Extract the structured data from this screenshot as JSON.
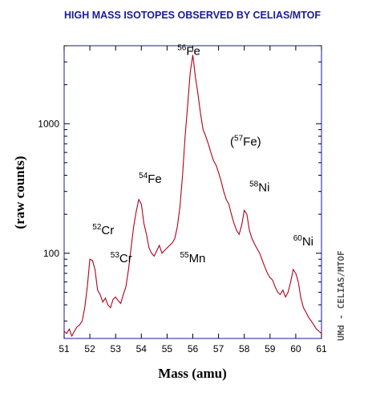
{
  "chart_data": {
    "type": "line",
    "title": "HIGH MASS ISOTOPES OBSERVED BY CELIAS/MTOF",
    "xlabel": "Mass (amu)",
    "ylabel": "(raw counts)",
    "xlim": [
      51,
      61
    ],
    "ylim": [
      22,
      4000
    ],
    "yscale": "log",
    "x_ticks": [
      51,
      52,
      53,
      54,
      55,
      56,
      57,
      58,
      59,
      60,
      61
    ],
    "y_ticks": [
      100,
      1000
    ],
    "line_color": "#b3001b",
    "credit": "UMd - CELIAS/MTOF",
    "annotations": [
      {
        "mass": "52",
        "element": "Cr",
        "x": 52.1,
        "y": 140
      },
      {
        "mass": "53",
        "element": "Cr",
        "x": 52.8,
        "y": 85
      },
      {
        "mass": "54",
        "element": "Fe",
        "x": 53.9,
        "y": 350
      },
      {
        "mass": "55",
        "element": "Mn",
        "x": 55.5,
        "y": 85
      },
      {
        "mass": "56",
        "element": "Fe",
        "x": 55.4,
        "y": 3400
      },
      {
        "mass": "57",
        "element": "Fe",
        "x": 57.45,
        "y": 680,
        "parenthesized": true
      },
      {
        "mass": "58",
        "element": "Ni",
        "x": 58.2,
        "y": 300
      },
      {
        "mass": "60",
        "element": "Ni",
        "x": 59.9,
        "y": 115
      }
    ],
    "series": [
      {
        "x": [
          51.0,
          51.1,
          51.2,
          51.3,
          51.4,
          51.5,
          51.6,
          51.7,
          51.8,
          51.9,
          52.0,
          52.1,
          52.2,
          52.3,
          52.4,
          52.5,
          52.6,
          52.7,
          52.8,
          52.9,
          53.0,
          53.1,
          53.2,
          53.3,
          53.4,
          53.5,
          53.6,
          53.7,
          53.8,
          53.9,
          54.0,
          54.1,
          54.2,
          54.3,
          54.4,
          54.5,
          54.6,
          54.7,
          54.8,
          54.9,
          55.0,
          55.1,
          55.2,
          55.3,
          55.4,
          55.5,
          55.6,
          55.7,
          55.8,
          55.9,
          56.0,
          56.1,
          56.2,
          56.3,
          56.4,
          56.5,
          56.6,
          56.7,
          56.8,
          56.9,
          57.0,
          57.1,
          57.2,
          57.3,
          57.4,
          57.5,
          57.6,
          57.7,
          57.8,
          57.9,
          58.0,
          58.1,
          58.2,
          58.3,
          58.4,
          58.5,
          58.6,
          58.7,
          58.8,
          58.9,
          59.0,
          59.1,
          59.2,
          59.3,
          59.4,
          59.5,
          59.6,
          59.7,
          59.8,
          59.9,
          60.0,
          60.1,
          60.2,
          60.3,
          60.4,
          60.5,
          60.6,
          60.7,
          60.8,
          60.9,
          61.0
        ],
        "y": [
          25,
          24,
          26,
          23,
          25,
          27,
          28,
          30,
          38,
          55,
          90,
          88,
          75,
          52,
          48,
          42,
          45,
          40,
          38,
          44,
          46,
          43,
          41,
          48,
          55,
          75,
          110,
          160,
          210,
          260,
          240,
          170,
          140,
          110,
          100,
          95,
          105,
          115,
          100,
          105,
          110,
          115,
          120,
          130,
          160,
          230,
          400,
          800,
          1400,
          2500,
          3400,
          2300,
          1700,
          1200,
          900,
          800,
          700,
          600,
          520,
          480,
          420,
          360,
          300,
          260,
          240,
          200,
          170,
          150,
          140,
          165,
          215,
          200,
          150,
          130,
          118,
          108,
          100,
          88,
          78,
          70,
          65,
          62,
          55,
          50,
          48,
          52,
          46,
          50,
          60,
          75,
          70,
          60,
          45,
          38,
          35,
          32,
          30,
          28,
          26,
          25,
          24
        ]
      }
    ]
  }
}
